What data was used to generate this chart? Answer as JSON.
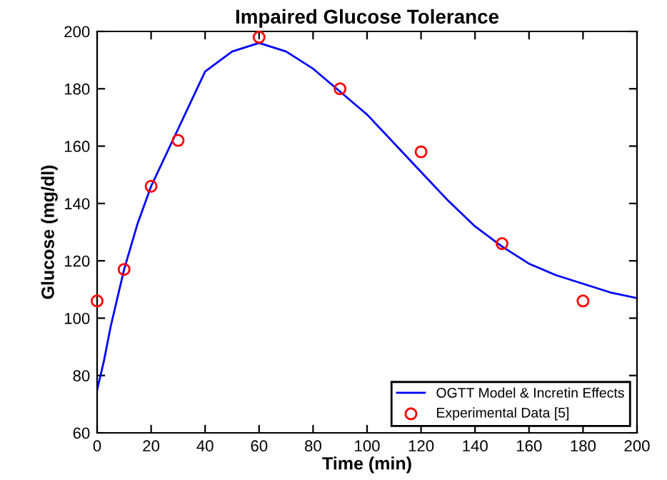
{
  "chart_data": {
    "type": "line",
    "title": "Impaired Glucose Tolerance",
    "xlabel": "Time (min)",
    "ylabel": "Glucose (mg/dl)",
    "xlim": [
      0,
      200
    ],
    "ylim": [
      60,
      200
    ],
    "xticks": [
      0,
      20,
      40,
      60,
      80,
      100,
      120,
      140,
      160,
      180,
      200
    ],
    "yticks": [
      60,
      80,
      100,
      120,
      140,
      160,
      180,
      200
    ],
    "grid": false,
    "legend": "bottom right",
    "series": [
      {
        "name": "OGTT Model & Incretin Effects",
        "color": "#0000ff",
        "marker": "none",
        "line_style": "solid",
        "x": [
          0,
          2.5,
          5,
          10,
          15,
          20,
          30,
          40,
          50,
          60,
          70,
          80,
          90,
          100,
          110,
          120,
          130,
          140,
          150,
          160,
          170,
          180,
          190,
          200
        ],
        "values": [
          75,
          85,
          97,
          117,
          133,
          146,
          166,
          186,
          193,
          196,
          193,
          187,
          179,
          171,
          161,
          151,
          141,
          132,
          125,
          119,
          115,
          112,
          109,
          107
        ]
      },
      {
        "name": "Experimental Data [5]",
        "type": "scatter",
        "color": "#ff0000",
        "marker": "circle",
        "x": [
          0,
          10,
          20,
          30,
          60,
          90,
          120,
          150,
          180
        ],
        "values": [
          106,
          117,
          146,
          162,
          198,
          180,
          158,
          126,
          106
        ]
      }
    ]
  }
}
